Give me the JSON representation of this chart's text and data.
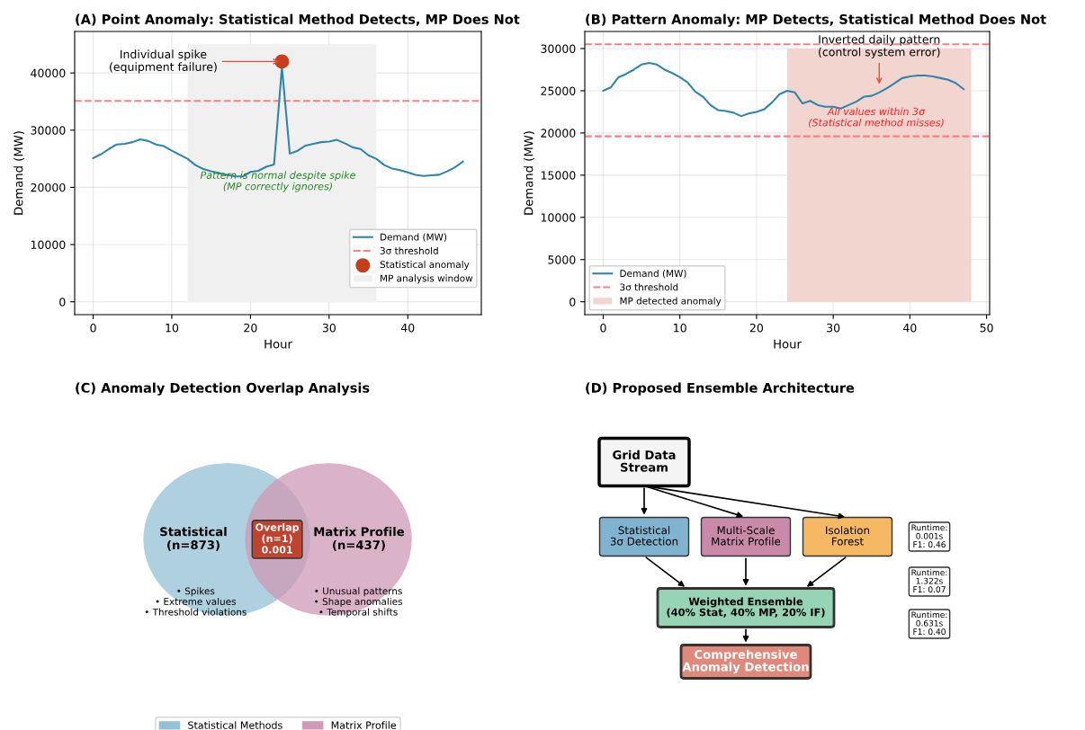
{
  "chart_data": [
    {
      "type": "line",
      "title": "(A) Point Anomaly: Statistical Method Detects, MP Does Not",
      "xlabel": "Hour",
      "ylabel": "Demand (MW)",
      "x": [
        0,
        1,
        2,
        3,
        4,
        5,
        6,
        7,
        8,
        9,
        10,
        11,
        12,
        13,
        14,
        15,
        16,
        17,
        18,
        19,
        20,
        21,
        22,
        23,
        24,
        25,
        26,
        27,
        28,
        29,
        30,
        31,
        32,
        33,
        34,
        35,
        36,
        37,
        38,
        39,
        40,
        41,
        42,
        43,
        44,
        45,
        46,
        47
      ],
      "series": [
        {
          "name": "Demand (MW)",
          "color": "#2e86ab",
          "values": [
            25100,
            25800,
            26700,
            27500,
            27600,
            27900,
            28400,
            28100,
            27500,
            27200,
            26400,
            25700,
            25000,
            23900,
            23200,
            22800,
            22500,
            22200,
            21900,
            21900,
            22700,
            22900,
            23600,
            24000,
            41000,
            25900,
            26400,
            27300,
            27600,
            27900,
            28000,
            28300,
            27700,
            27000,
            26700,
            25600,
            25000,
            23900,
            23300,
            23000,
            22600,
            22200,
            22000,
            22100,
            22200,
            22800,
            23500,
            24500
          ]
        },
        {
          "name": "Statistical anomaly",
          "type": "scatter",
          "color": "#c73e1d",
          "x": [
            24
          ],
          "values": [
            42000
          ]
        },
        {
          "name": "MP analysis window",
          "type": "area",
          "color": "#f0f0f0",
          "x": [
            12,
            36
          ],
          "values": [
            45000,
            45000
          ]
        }
      ],
      "ref_lines": [
        {
          "axis": "y",
          "value": 35100,
          "label": "3σ threshold",
          "color": "#ff7f7f",
          "line_style": "dashed"
        }
      ],
      "annotations": [
        {
          "text": "Individual spike\n(equipment failure)",
          "x": 24,
          "y": 42000
        },
        "Pattern is normal despite spike\n(MP correctly ignores)"
      ],
      "xlim": [
        -2.35,
        49.35
      ],
      "ylim": [
        -2250,
        47250
      ],
      "xticks": [
        0,
        10,
        20,
        30,
        40
      ],
      "yticks": [
        0,
        10000,
        20000,
        30000,
        40000
      ],
      "grid": true,
      "legend": "bottom right"
    },
    {
      "type": "line",
      "title": "(B) Pattern Anomaly: MP Detects, Statistical Method Does Not",
      "xlabel": "Hour",
      "ylabel": "Demand (MW)",
      "x": [
        0,
        1,
        2,
        3,
        4,
        5,
        6,
        7,
        8,
        9,
        10,
        11,
        12,
        13,
        14,
        15,
        16,
        17,
        18,
        19,
        20,
        21,
        22,
        23,
        24,
        25,
        26,
        27,
        28,
        29,
        30,
        31,
        32,
        33,
        34,
        35,
        36,
        37,
        38,
        39,
        40,
        41,
        42,
        43,
        44,
        45,
        46,
        47
      ],
      "series": [
        {
          "name": "Demand (MW)",
          "color": "#2e86ab",
          "values": [
            25000,
            25400,
            26600,
            27000,
            27500,
            28100,
            28300,
            28100,
            27500,
            27100,
            26600,
            26000,
            24900,
            24300,
            23300,
            22700,
            22600,
            22400,
            22000,
            22300,
            22500,
            22800,
            23600,
            24600,
            25000,
            24800,
            23500,
            23800,
            23300,
            23100,
            23100,
            22900,
            23300,
            23700,
            24300,
            24400,
            24800,
            25300,
            25900,
            26500,
            26700,
            26800,
            26800,
            26700,
            26500,
            26300,
            25900,
            25200
          ]
        },
        {
          "name": "MP detected anomaly",
          "type": "area",
          "color": "#f2d5cf",
          "x": [
            24,
            48
          ],
          "values": [
            30000,
            30000
          ]
        }
      ],
      "ref_lines": [
        {
          "axis": "y",
          "value": 30500,
          "label": "3σ threshold",
          "color": "#ff7f7f",
          "line_style": "dashed"
        },
        {
          "axis": "y",
          "value": 19600,
          "color": "#ff7f7f",
          "line_style": "dashed"
        }
      ],
      "annotations": [
        {
          "text": "Inverted daily pattern\n(control system error)",
          "x": 36,
          "y": 25500
        },
        "All values within 3σ\n(Statistical method misses)"
      ],
      "xlim": [
        -2.4,
        50.4
      ],
      "ylim": [
        -1525,
        32025
      ],
      "xticks": [
        0,
        10,
        20,
        30,
        40,
        50
      ],
      "yticks": [
        0,
        5000,
        10000,
        15000,
        20000,
        25000,
        30000
      ],
      "grid": true,
      "legend": "bottom left"
    },
    {
      "type": "other",
      "title": "(C) Anomaly Detection Overlap Analysis",
      "categories": [
        "Statistical",
        "Matrix Profile",
        "Overlap"
      ],
      "series": [
        {
          "name": "Statistical Methods",
          "color": "#94c1d5",
          "values": [
            873,
            null,
            1
          ],
          "colors": [
            "#94c1d5",
            null,
            "#c0432e"
          ],
          "value_labels": [
            "(n=873)",
            null,
            "(n=1)\n0.001"
          ]
        },
        {
          "name": "Matrix Profile",
          "color": "#d09ab6",
          "values": [
            null,
            437,
            null
          ],
          "value_labels": [
            null,
            "(n=437)",
            null
          ]
        }
      ],
      "annotations": [
        "• Spikes\n• Extreme values\n• Threshold violations",
        "• Unusual patterns\n• Shape anomalies\n• Temporal shifts"
      ],
      "legend": "bottom"
    },
    {
      "type": "other",
      "title": "(D) Proposed Ensemble Architecture",
      "categories": [
        "Grid Data\nStream",
        "Statistical\n3σ Detection",
        "Multi-Scale\nMatrix Profile",
        "Isolation\nForest",
        "Weighted Ensemble\n(40% Stat, 40% MP, 20% IF)",
        "Comprehensive\nAnomaly Detection"
      ],
      "colors": [
        "#f4f4f4",
        "#7fb3cf",
        "#c98aaa",
        "#f5b963",
        "#97d4b5",
        "#e0897a"
      ],
      "annotations": [
        "Runtime:\n0.001s\nF1: 0.46",
        "Runtime:\n1.322s\nF1: 0.07",
        "Runtime:\n0.631s\nF1: 0.40"
      ]
    }
  ]
}
